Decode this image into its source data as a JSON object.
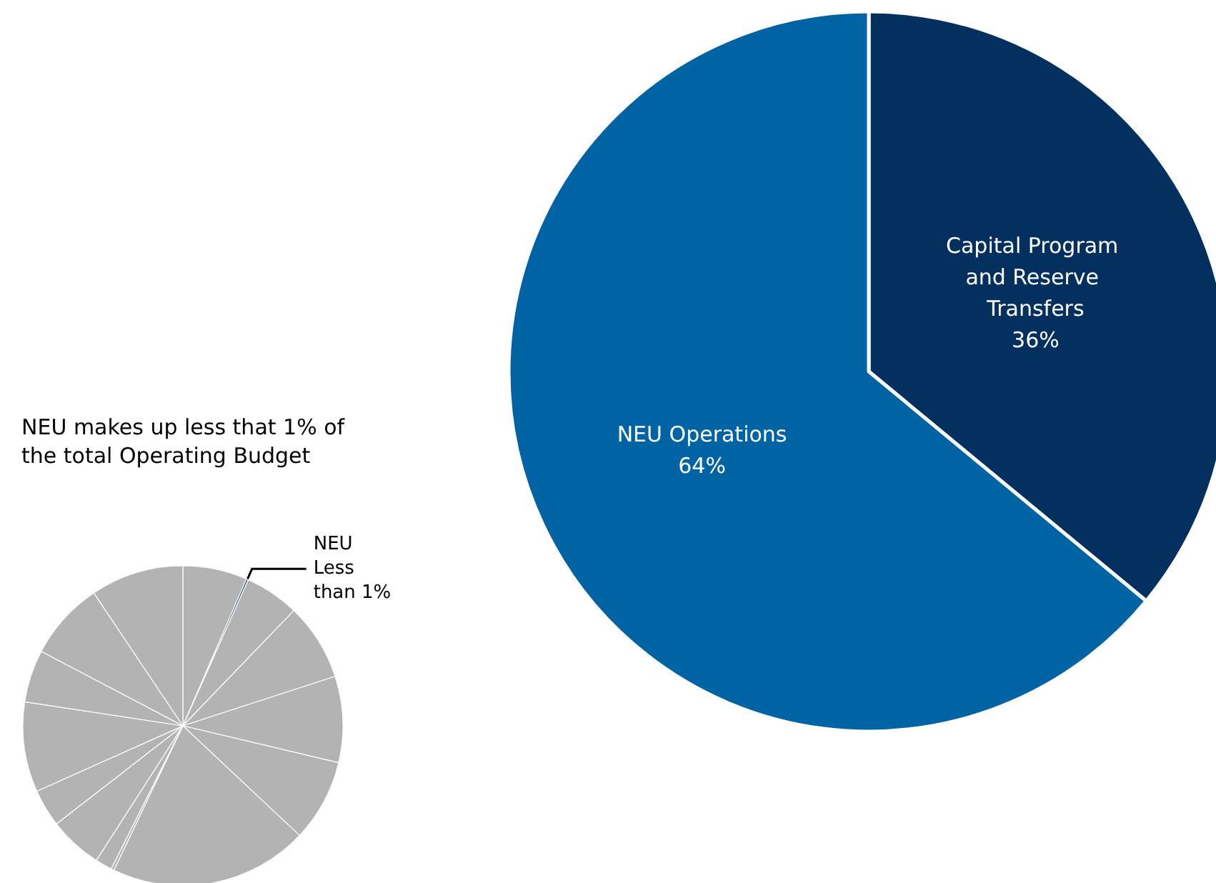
{
  "chart_data": [
    {
      "type": "pie",
      "title": "NEU makes up less that 1% of the total Operating Budget",
      "categories": [
        null,
        "NEU Less than 1%",
        null,
        null,
        null,
        null,
        null,
        null,
        null,
        null,
        null,
        null,
        null,
        null,
        null
      ],
      "values": [
        6.5,
        0.2,
        5.5,
        7.8,
        8.7,
        8.3,
        20.1,
        0.3,
        1.7,
        5.4,
        3.8,
        9.1,
        5.3,
        7.9,
        9.4
      ],
      "colors": [
        "#b3b3b3",
        "#1f4e79",
        "#b3b3b3",
        "#b3b3b3",
        "#b3b3b3",
        "#b3b3b3",
        "#b3b3b3",
        "#b3b3b3",
        "#b3b3b3",
        "#b3b3b3",
        "#b3b3b3",
        "#b3b3b3",
        "#b3b3b3",
        "#b3b3b3",
        "#b3b3b3"
      ]
    },
    {
      "type": "pie",
      "categories": [
        "Capital Program and Reserve Transfers",
        "NEU Operations"
      ],
      "values": [
        36,
        64
      ],
      "value_labels": [
        "36%",
        "64%"
      ],
      "colors": [
        "#03305e",
        "#0063a3"
      ]
    }
  ]
}
